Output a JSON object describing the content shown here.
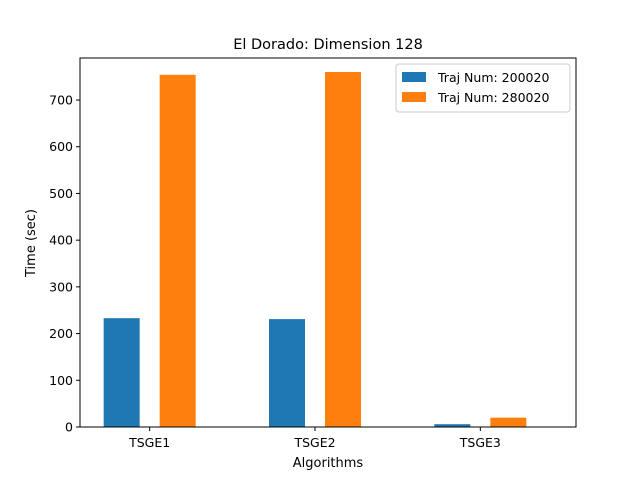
{
  "chart_data": {
    "type": "bar",
    "title": "El Dorado: Dimension 128",
    "xlabel": "Algorithms",
    "ylabel": "Time (sec)",
    "categories": [
      "TSGE1",
      "TSGE2",
      "TSGE3"
    ],
    "series": [
      {
        "name": "Traj Num: 200020",
        "color": "#1f77b4",
        "values": [
          233,
          231,
          6
        ]
      },
      {
        "name": "Traj Num: 280020",
        "color": "#ff7f0e",
        "values": [
          754,
          760,
          20
        ]
      }
    ],
    "ylim": [
      0,
      790
    ],
    "yticks": [
      0,
      100,
      200,
      300,
      400,
      500,
      600,
      700
    ],
    "grid": false,
    "legend_position": "top-right"
  }
}
